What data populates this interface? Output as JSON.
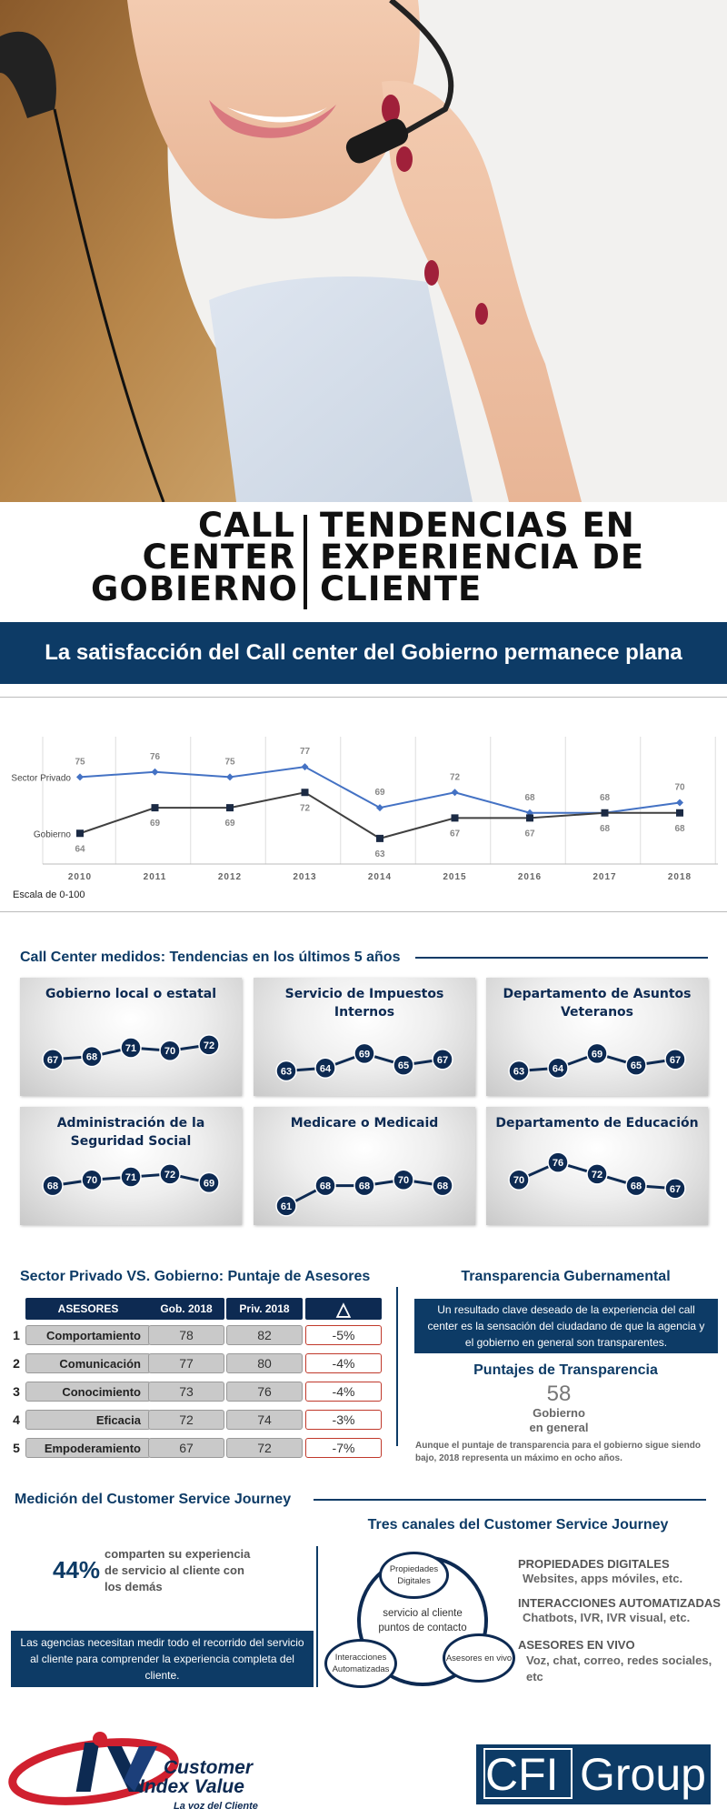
{
  "title": {
    "left_lines": [
      "CALL",
      "CENTER",
      "GOBIERNO"
    ],
    "right_lines": [
      "TENDENCIAS EN",
      "EXPERIENCIA DE",
      "CLIENTE"
    ]
  },
  "banner": "La satisfacción del Call center del Gobierno permanece plana",
  "chart_data": {
    "type": "line",
    "x": [
      "2010",
      "2011",
      "2012",
      "2013",
      "2014",
      "2015",
      "2016",
      "2017",
      "2018"
    ],
    "series": [
      {
        "name": "Sector Privado",
        "values": [
          75,
          76,
          75,
          77,
          69,
          72,
          68,
          68,
          70
        ],
        "color": "#4472c4"
      },
      {
        "name": "Gobierno",
        "values": [
          64,
          69,
          69,
          72,
          63,
          67,
          67,
          68,
          68
        ],
        "color": "#404040"
      }
    ],
    "ylim": [
      58,
      82
    ],
    "grid": "vertical",
    "legend": "left, inline labels"
  },
  "scale_note": "Escala de 0-100",
  "trends": {
    "heading": "Call Center medidos: Tendencias en los últimos 5 años",
    "cards": [
      {
        "title": "Gobierno local o estatal",
        "values": [
          67,
          68,
          71,
          70,
          72
        ]
      },
      {
        "title": "Servicio de Impuestos Internos",
        "values": [
          63,
          64,
          69,
          65,
          67
        ]
      },
      {
        "title": "Departamento de Asuntos Veteranos",
        "values": [
          63,
          64,
          69,
          65,
          67
        ]
      },
      {
        "title": "Administración de la Seguridad Social",
        "values": [
          68,
          70,
          71,
          72,
          69
        ]
      },
      {
        "title": "Medicare o Medicaid",
        "values": [
          61,
          68,
          68,
          70,
          68
        ]
      },
      {
        "title": "Departamento de Educación",
        "values": [
          70,
          76,
          72,
          68,
          67
        ]
      }
    ]
  },
  "advisors": {
    "heading": "Sector Privado VS. Gobierno: Puntaje de Asesores",
    "headers": [
      "ASESORES",
      "Gob. 2018",
      "Priv. 2018",
      "△"
    ],
    "rows": [
      {
        "num": "1",
        "label": "Comportamiento",
        "gov": "78",
        "priv": "82",
        "delta": "-5%"
      },
      {
        "num": "2",
        "label": "Comunicación",
        "gov": "77",
        "priv": "80",
        "delta": "-4%"
      },
      {
        "num": "3",
        "label": "Conocimiento",
        "gov": "73",
        "priv": "76",
        "delta": "-4%"
      },
      {
        "num": "4",
        "label": "Eficacia",
        "gov": "72",
        "priv": "74",
        "delta": "-3%"
      },
      {
        "num": "5",
        "label": "Empoderamiento",
        "gov": "67",
        "priv": "72",
        "delta": "-7%"
      }
    ]
  },
  "transparency": {
    "heading": "Transparencia Gubernamental",
    "box_text": "Un resultado clave deseado de la experiencia del call center es la sensación del ciudadano de que la agencia y el gobierno en general son transparentes.",
    "scores_heading": "Puntajes de Transparencia",
    "score": "58",
    "score_label_1": "Gobierno",
    "score_label_2": "en general",
    "note": "Aunque el puntaje de transparencia para el gobierno sigue siendo bajo, 2018 representa un máximo en ocho años."
  },
  "journey": {
    "heading": "Medición del Customer Service Journey",
    "stat": "44%",
    "stat_text": "comparten su experiencia de servicio al cliente con los demás",
    "box_text": "Las agencias necesitan medir todo el recorrido del servicio al cliente para comprender la experiencia completa del cliente.",
    "channels_heading": "Tres canales del Customer Service Journey",
    "center_text": "servicio al cliente puntos de contacto",
    "circles": [
      "Propiedades Digitales",
      "Interacciones Automatizadas",
      "Asesores en vivo"
    ],
    "channels": [
      {
        "title": "PROPIEDADES DIGITALES",
        "sub": "Websites, apps móviles, etc."
      },
      {
        "title": "INTERACCIONES AUTOMATIZADAS",
        "sub": "Chatbots, IVR, IVR visual, etc."
      },
      {
        "title": "ASESORES EN VIVO",
        "sub": "Voz, chat, correo, redes sociales, etc"
      }
    ]
  },
  "logos": {
    "civ_line1": "Customer",
    "civ_line2": "Index Value",
    "civ_tag": "La voz del Cliente",
    "cfi_left": "CFI",
    "cfi_right": "Group"
  },
  "colors": {
    "navy": "#0d3b66",
    "dark_navy": "#0d2a52",
    "private_line": "#4472c4",
    "gov_line": "#404040",
    "delta_border": "#c0392b",
    "logo_red": "#d0202f"
  }
}
